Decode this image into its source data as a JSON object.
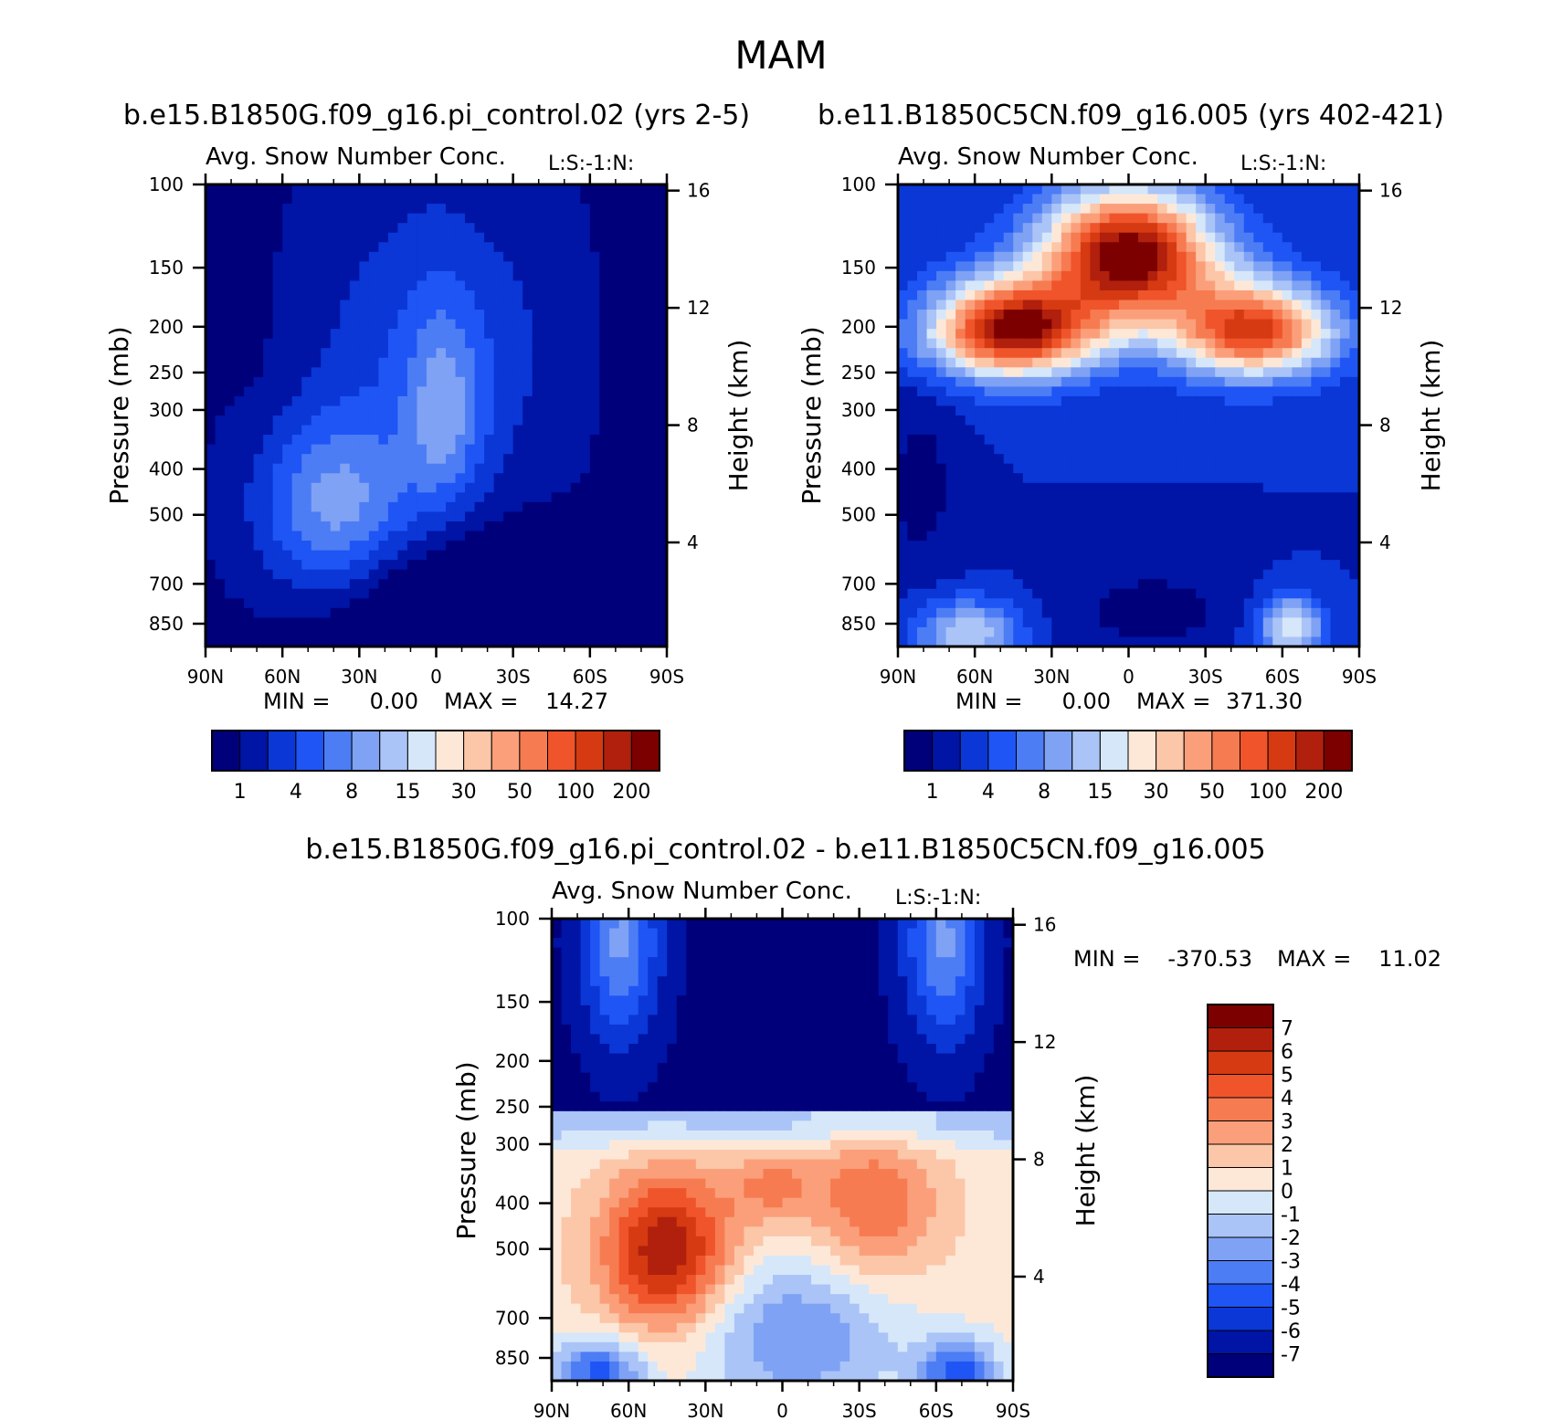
{
  "figure_title": "MAM",
  "colors": {
    "blues": [
      "#00007a",
      "#0014a6",
      "#0a37d6",
      "#1f55f5",
      "#4d7df5",
      "#7fa2f5",
      "#aac4f7",
      "#d6e7fa"
    ],
    "reds": [
      "#fde8d8",
      "#fcc6a8",
      "#fb9f7b",
      "#f77b50",
      "#f0542b",
      "#d63a12",
      "#b0200c",
      "#7d0000"
    ]
  },
  "chart_data": [
    {
      "type": "heatmap",
      "panel": "top-left",
      "case_title": "b.e15.B1850G.f09_g16.pi_control.02 (yrs 2-5)",
      "title": "Avg. Snow Number Conc.",
      "units_label": "L:S:-1:N:",
      "xlabel": "",
      "ylabel": "Pressure (mb)",
      "y2label": "Height (km)",
      "x_ticks": [
        "90N",
        "60N",
        "30N",
        "0",
        "30S",
        "60S",
        "90S"
      ],
      "y_ticks": [
        100,
        150,
        200,
        250,
        300,
        400,
        500,
        700,
        850
      ],
      "y2_ticks": [
        16,
        12,
        8,
        4
      ],
      "ylim": [
        100,
        950
      ],
      "min_label": "MIN =",
      "min_value": "0.00",
      "max_label": "MAX =",
      "max_value": "14.27",
      "colorbar_labels": [
        "1",
        "4",
        "8",
        "15",
        "30",
        "50",
        "100",
        "200"
      ],
      "field_max_level": 6
    },
    {
      "type": "heatmap",
      "panel": "top-right",
      "case_title": "b.e11.B1850C5CN.f09_g16.005 (yrs 402-421)",
      "title": "Avg. Snow Number Conc.",
      "units_label": "L:S:-1:N:",
      "xlabel": "",
      "ylabel": "Pressure (mb)",
      "y2label": "Height (km)",
      "x_ticks": [
        "90N",
        "60N",
        "30N",
        "0",
        "30S",
        "60S",
        "90S"
      ],
      "y_ticks": [
        100,
        150,
        200,
        250,
        300,
        400,
        500,
        700,
        850
      ],
      "y2_ticks": [
        16,
        12,
        8,
        4
      ],
      "ylim": [
        100,
        950
      ],
      "min_label": "MIN =",
      "min_value": "0.00",
      "max_label": "MAX =",
      "max_value": "371.30",
      "colorbar_labels": [
        "1",
        "4",
        "8",
        "15",
        "30",
        "50",
        "100",
        "200"
      ],
      "field_max_level": 15
    },
    {
      "type": "heatmap",
      "panel": "bottom",
      "case_title": "b.e15.B1850G.f09_g16.pi_control.02 - b.e11.B1850C5CN.f09_g16.005",
      "title": "Avg. Snow Number Conc.",
      "units_label": "L:S:-1:N:",
      "xlabel": "",
      "ylabel": "Pressure (mb)",
      "y2label": "Height (km)",
      "x_ticks": [
        "90N",
        "60N",
        "30N",
        "0",
        "30S",
        "60S",
        "90S"
      ],
      "y_ticks": [
        100,
        150,
        200,
        250,
        300,
        400,
        500,
        700,
        850
      ],
      "y2_ticks": [
        16,
        12,
        8,
        4
      ],
      "ylim": [
        100,
        950
      ],
      "min_label": "MIN =",
      "min_value": "-370.53",
      "max_label": "MAX =",
      "max_value": "11.02",
      "colorbar_labels": [
        "7",
        "6",
        "5",
        "4",
        "3",
        "2",
        "1",
        "0",
        "-1",
        "-2",
        "-3",
        "-4",
        "-5",
        "-6",
        "-7"
      ],
      "field_max_level": 15
    }
  ]
}
